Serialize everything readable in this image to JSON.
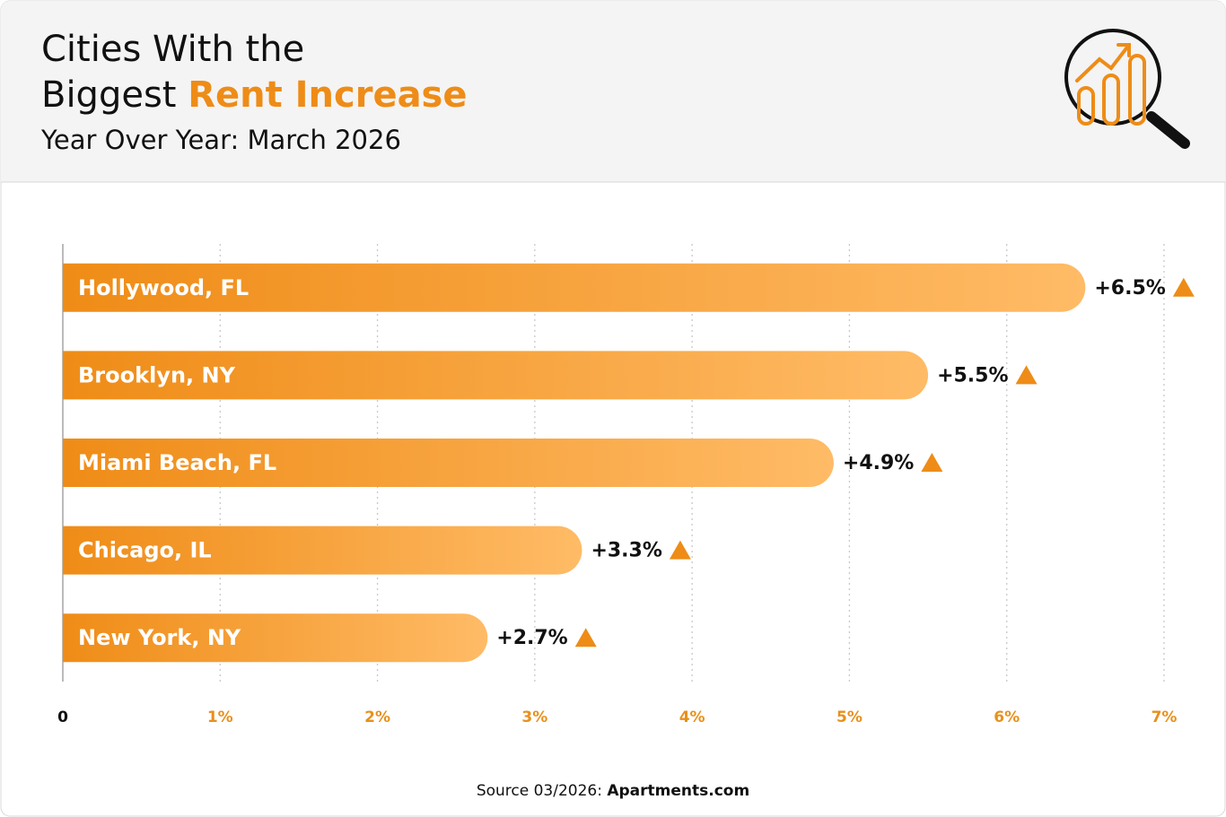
{
  "chart_data": {
    "type": "bar",
    "orientation": "horizontal",
    "title": {
      "line1": "Cities With the",
      "line2": "Biggest ",
      "highlight": "Rent Increase"
    },
    "subtitle": "Year Over Year: March 2026",
    "categories": [
      "Hollywood, FL",
      "Brooklyn, NY",
      "Miami Beach, FL",
      "Chicago, IL",
      "New York, NY"
    ],
    "values": [
      6.5,
      5.5,
      4.9,
      3.3,
      2.7
    ],
    "value_labels": [
      "+6.5%",
      "+5.5%",
      "+4.9%",
      "+3.3%",
      "+2.7%"
    ],
    "color": "#f0901c",
    "xlim": [
      0,
      7
    ],
    "xticks": [
      0,
      {
        "value": 1,
        "label": "1%"
      },
      {
        "value": 2,
        "label": "2%"
      },
      {
        "value": 3,
        "label": "3%"
      },
      {
        "value": 4,
        "label": "4%"
      },
      {
        "value": 5,
        "label": "5%"
      },
      {
        "value": 6,
        "label": "6%"
      },
      {
        "value": 7,
        "label": "7%"
      }
    ],
    "grid": true,
    "source": {
      "prefix": "Source 03/2026: ",
      "name": "Apartments.com"
    }
  }
}
